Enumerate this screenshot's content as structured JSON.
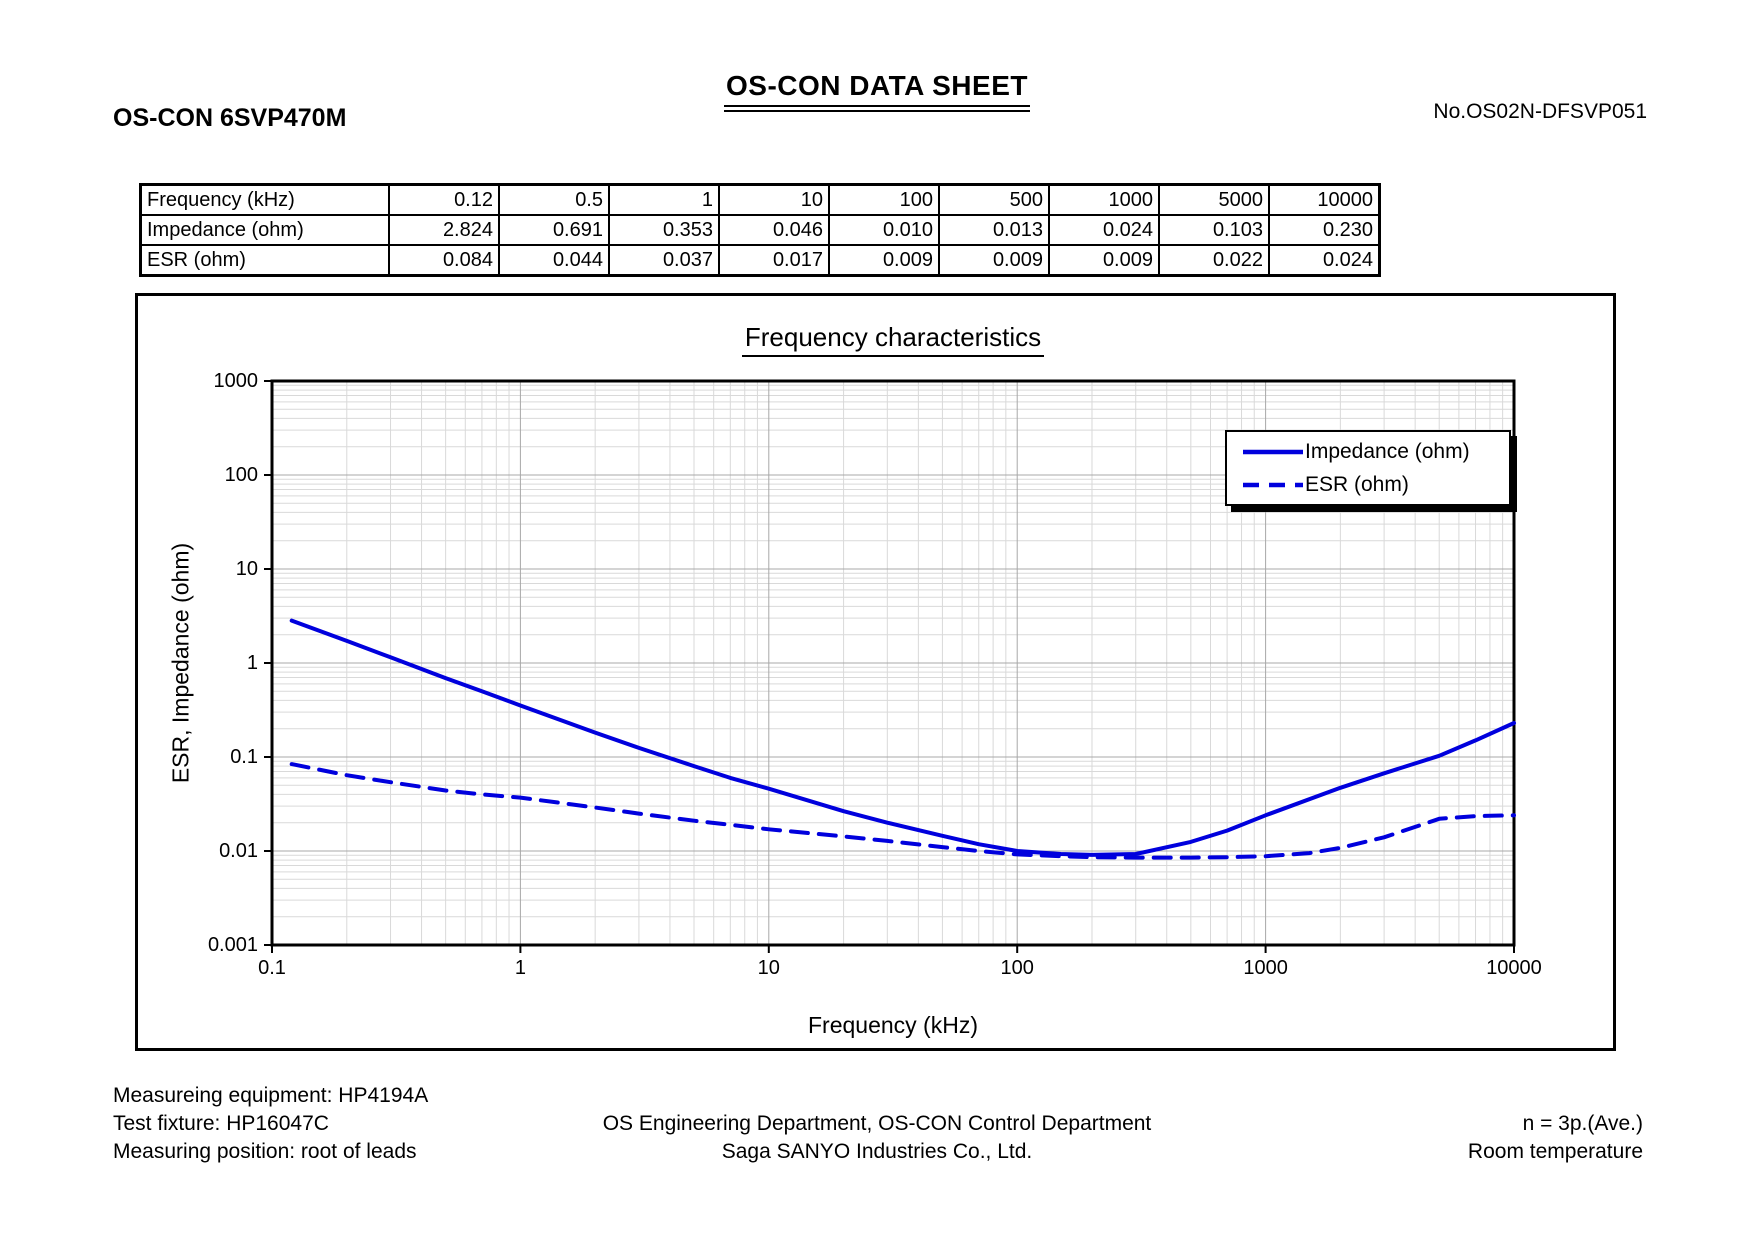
{
  "header": {
    "doc_title": "OS-CON DATA SHEET",
    "part_number": "OS-CON 6SVP470M",
    "doc_number": "No.OS02N-DFSVP051"
  },
  "table": {
    "rows": [
      {
        "label": "Frequency (kHz)",
        "values": [
          "0.12",
          "0.5",
          "1",
          "10",
          "100",
          "500",
          "1000",
          "5000",
          "10000"
        ]
      },
      {
        "label": "Impedance (ohm)",
        "values": [
          "2.824",
          "0.691",
          "0.353",
          "0.046",
          "0.010",
          "0.013",
          "0.024",
          "0.103",
          "0.230"
        ]
      },
      {
        "label": "ESR (ohm)",
        "values": [
          "0.084",
          "0.044",
          "0.037",
          "0.017",
          "0.009",
          "0.009",
          "0.009",
          "0.022",
          "0.024"
        ]
      }
    ]
  },
  "chart_data": {
    "type": "line",
    "title": "Frequency characteristics",
    "xlabel": "Frequency (kHz)",
    "ylabel": "ESR, Impedance (ohm)",
    "x_scale": "log",
    "y_scale": "log",
    "xlim": [
      0.1,
      10000
    ],
    "ylim": [
      0.001,
      1000
    ],
    "grid": true,
    "legend_position": "upper right",
    "x_ticks": [
      "0.1",
      "1",
      "10",
      "100",
      "1000",
      "10000"
    ],
    "y_ticks": [
      "1000",
      "100",
      "10",
      "1",
      "0.1",
      "0.01",
      "0.001"
    ],
    "line_color": "#0000dd",
    "grid_major_color": "#a8a8a8",
    "grid_minor_color": "#d9d9d9",
    "series": [
      {
        "name": "Impedance (ohm)",
        "line_style": "solid",
        "color": "#0000dd",
        "x": [
          0.12,
          0.2,
          0.3,
          0.5,
          0.7,
          1,
          2,
          3,
          5,
          7,
          10,
          20,
          30,
          50,
          70,
          100,
          150,
          200,
          300,
          500,
          700,
          1000,
          2000,
          3000,
          5000,
          7000,
          10000
        ],
        "y": [
          2.824,
          1.72,
          1.15,
          0.691,
          0.5,
          0.353,
          0.182,
          0.125,
          0.08,
          0.06,
          0.046,
          0.0265,
          0.02,
          0.0145,
          0.0118,
          0.01,
          0.0093,
          0.0091,
          0.0093,
          0.0125,
          0.0165,
          0.024,
          0.047,
          0.067,
          0.103,
          0.15,
          0.23
        ]
      },
      {
        "name": "ESR (ohm)",
        "line_style": "dashed",
        "color": "#0000dd",
        "x": [
          0.12,
          0.2,
          0.3,
          0.5,
          0.7,
          1,
          2,
          3,
          5,
          7,
          10,
          20,
          30,
          50,
          70,
          100,
          150,
          200,
          300,
          500,
          700,
          1000,
          1500,
          2000,
          3000,
          5000,
          7000,
          10000
        ],
        "y": [
          0.084,
          0.064,
          0.054,
          0.044,
          0.04,
          0.037,
          0.029,
          0.025,
          0.021,
          0.019,
          0.017,
          0.0143,
          0.0128,
          0.011,
          0.01,
          0.0092,
          0.0088,
          0.0086,
          0.0085,
          0.0085,
          0.0086,
          0.0088,
          0.0095,
          0.0108,
          0.014,
          0.022,
          0.0235,
          0.024
        ]
      }
    ]
  },
  "footer": {
    "left_lines": [
      "Measureing equipment: HP4194A",
      "Test fixture: HP16047C",
      "Measuring position: root of leads"
    ],
    "center_lines": [
      "OS Engineering Department, OS-CON Control Department",
      "Saga SANYO Industries Co., Ltd."
    ],
    "right_lines": [
      "n = 3p.(Ave.)",
      "Room temperature"
    ]
  }
}
